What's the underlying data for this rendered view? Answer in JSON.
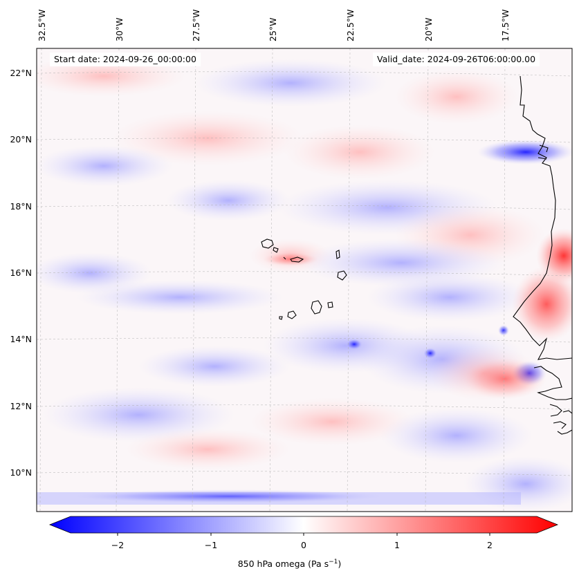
{
  "map": {
    "start_date": "Start date: 2024-09-26_00:00:00",
    "valid_date": "Valid_date: 2024-09-26T06:00:00.00",
    "lon_labels": [
      "32.5°W",
      "30°W",
      "27.5°W",
      "25°W",
      "22.5°W",
      "20°W",
      "17.5°W"
    ],
    "lat_labels": [
      "22°N",
      "20°N",
      "18°N",
      "16°N",
      "14°N",
      "12°N",
      "10°N"
    ],
    "colormap": "bwr",
    "coastline_color": "#000000",
    "gridline_style": "dashed"
  },
  "colorbar": {
    "tick_labels": [
      "−2",
      "−1",
      "0",
      "1",
      "2"
    ],
    "title_main": "850 hPa omega (Pa s",
    "title_sup": "−1",
    "title_end": ")",
    "min_color": "#0000ff",
    "mid_color": "#ffffff",
    "max_color": "#ff0000"
  }
}
